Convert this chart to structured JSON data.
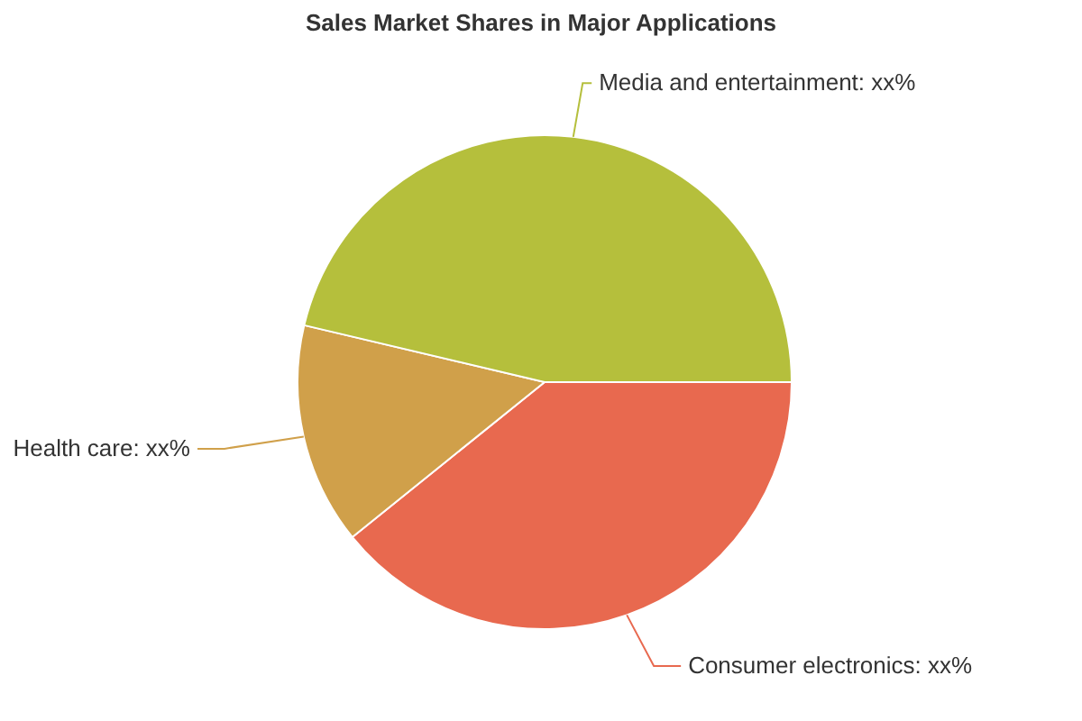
{
  "chart_data": {
    "type": "pie",
    "title": "Sales Market Shares in Major Applications",
    "categories": [
      "Consumer electronics",
      "Health care",
      "Media and entertainment"
    ],
    "values": [
      39.2,
      14.5,
      46.3
    ],
    "colors": [
      "#e8694f",
      "#d0a04a",
      "#b5bf3c"
    ],
    "value_labels": [
      "xx%",
      "xx%",
      "xx%"
    ]
  }
}
